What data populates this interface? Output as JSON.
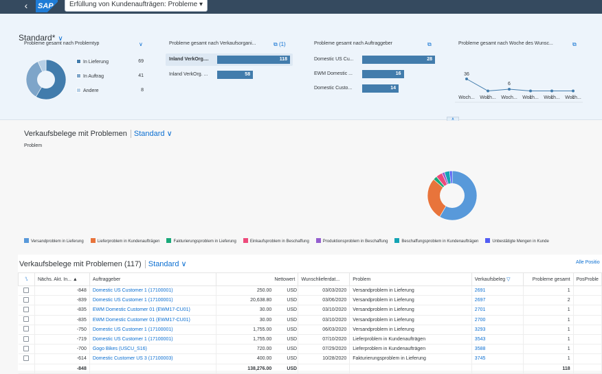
{
  "shell": {
    "back_icon": "back-icon",
    "logo": "SAP",
    "app_title": "Erfüllung von Kundenaufträgen: Probleme ▾"
  },
  "header": {
    "variant": "Standard*",
    "card1": {
      "title": "Probleme gesamt nach Problemtyp",
      "items": [
        {
          "label": "In Lieferung",
          "value": "69",
          "color": "#427cac"
        },
        {
          "label": "In Auftrag",
          "value": "41",
          "color": "#7ea5c9"
        },
        {
          "label": "Andere",
          "value": "8",
          "color": "#b6cfe6"
        }
      ]
    },
    "card2": {
      "title": "Probleme gesamt nach Verkaufsorgani...",
      "link": "(1)",
      "bars": [
        {
          "label": "Inland VerkOrg....",
          "value": 118
        },
        {
          "label": "Inland VerkOrg. ...",
          "value": 58
        }
      ]
    },
    "card3": {
      "title": "Probleme gesamt nach Auftraggeber",
      "bars": [
        {
          "label": "Domestic US Cu...",
          "value": 28
        },
        {
          "label": "EWM Domestic ...",
          "value": 16
        },
        {
          "label": "Domestic Custo...",
          "value": 14
        }
      ]
    },
    "card4": {
      "title": "Probleme gesamt nach Woche des Wunsc...",
      "points": [
        {
          "x": "Woch...",
          "value": 36
        },
        {
          "x": "Woch...",
          "value": 1
        },
        {
          "x": "Woch...",
          "value": 6
        },
        {
          "x": "Woch...",
          "value": 1
        },
        {
          "x": "Woch...",
          "value": 1
        },
        {
          "x": "Woch...",
          "value": 1
        }
      ]
    }
  },
  "chart_section": {
    "title": "Verkaufsbelege mit Problemen",
    "variant": "Standard",
    "axis_label": "Problem",
    "legend": [
      {
        "label": "Versandproblem in Lieferung",
        "color": "#5899da"
      },
      {
        "label": "Lieferproblem in Kundenaufträgen",
        "color": "#e8743b"
      },
      {
        "label": "Fakturierungsproblem in Lieferung",
        "color": "#19a979"
      },
      {
        "label": "Einkaufsproblem in Beschaffung",
        "color": "#ed4a7b"
      },
      {
        "label": "Produktionsproblem in Beschaffung",
        "color": "#945ecf"
      },
      {
        "label": "Beschaffungsproblem in Kundenaufträgen",
        "color": "#13a4b4"
      },
      {
        "label": "Unbestätigte Mengen in Kunde",
        "color": "#525df4"
      }
    ]
  },
  "chart_data": {
    "type": "pie",
    "title": "",
    "categories": [
      "Versandproblem in Lieferung",
      "Lieferproblem in Kundenaufträgen",
      "Fakturierungsproblem in Lieferung",
      "Einkaufsproblem in Beschaffung",
      "Produktionsproblem in Beschaffung",
      "Beschaffungsproblem in Kundenaufträgen",
      "Unbestätigte Mengen in Kunde"
    ],
    "values": [
      69,
      33,
      3,
      5,
      2,
      4,
      2
    ]
  },
  "table": {
    "title": "Verkaufsbelege mit Problemen (117)",
    "variant": "Standard",
    "all_positions": "Alle Positio",
    "columns": [
      "Nächs. Akt. In...",
      "Auftraggeber",
      "Nettowert",
      "Wunschlieferdat...",
      "Problem",
      "Verkaufsbeleg",
      "Probleme gesamt",
      "PosProble"
    ],
    "rows": [
      {
        "days": "-848",
        "customer": "Domestic US Customer 1 (17100001)",
        "net": "250.00",
        "cur": "USD",
        "date": "03/03/2020",
        "problem": "Versandproblem in Lieferung",
        "doc": "2691",
        "count": "1"
      },
      {
        "days": "-839",
        "customer": "Domestic US Customer 1 (17100001)",
        "net": "20,638.80",
        "cur": "USD",
        "date": "03/06/2020",
        "problem": "Versandproblem in Lieferung",
        "doc": "2697",
        "count": "2"
      },
      {
        "days": "-835",
        "customer": "EWM Domestic Customer 01 (EWM17-CU01)",
        "net": "30.00",
        "cur": "USD",
        "date": "03/10/2020",
        "problem": "Versandproblem in Lieferung",
        "doc": "2701",
        "count": "1"
      },
      {
        "days": "-835",
        "customer": "EWM Domestic Customer 01 (EWM17-CU01)",
        "net": "30.00",
        "cur": "USD",
        "date": "03/10/2020",
        "problem": "Versandproblem in Lieferung",
        "doc": "2700",
        "count": "1"
      },
      {
        "days": "-750",
        "customer": "Domestic US Customer 1 (17100001)",
        "net": "1,755.00",
        "cur": "USD",
        "date": "06/03/2020",
        "problem": "Versandproblem in Lieferung",
        "doc": "3293",
        "count": "1"
      },
      {
        "days": "-719",
        "customer": "Domestic US Customer 1 (17100001)",
        "net": "1,755.00",
        "cur": "USD",
        "date": "07/10/2020",
        "problem": "Lieferproblem in Kundenaufträgen",
        "doc": "3543",
        "count": "1"
      },
      {
        "days": "-700",
        "customer": "Gogo Bikes (USCU_S16)",
        "net": "720.00",
        "cur": "USD",
        "date": "07/29/2020",
        "problem": "Lieferproblem in Kundenaufträgen",
        "doc": "3588",
        "count": "1"
      },
      {
        "days": "-614",
        "customer": "Domestic Customer US 3 (17100003)",
        "net": "400.00",
        "cur": "USD",
        "date": "10/28/2020",
        "problem": "Fakturierungsproblem in Lieferung",
        "doc": "3745",
        "count": "1"
      }
    ],
    "total": {
      "days": "-848",
      "net": "138,276.00",
      "cur": "USD",
      "count": "118"
    }
  }
}
